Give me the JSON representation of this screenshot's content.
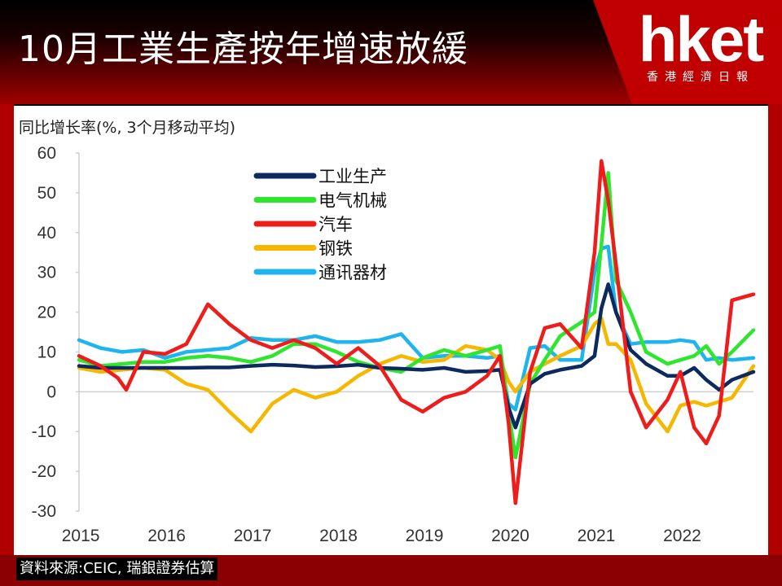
{
  "chart_data": {
    "type": "line",
    "title": "10月工業生產按年增速放緩",
    "xlabel": "",
    "ylabel": "同比增长率(%, 3个月移动平均)",
    "ylim": [
      -30,
      60
    ],
    "xlim": [
      2015.0,
      2022.85
    ],
    "yticks": [
      60,
      50,
      40,
      30,
      20,
      10,
      0,
      -10,
      -20,
      -30
    ],
    "xticks": [
      "2015",
      "2016",
      "2017",
      "2018",
      "2019",
      "2020",
      "2021",
      "2022"
    ],
    "grid": false,
    "legend_position": "top-left",
    "series": [
      {
        "name": "工业生产",
        "color": "#0d2a5e",
        "points": [
          [
            2015.0,
            6.5
          ],
          [
            2015.25,
            6.0
          ],
          [
            2015.5,
            6.0
          ],
          [
            2015.75,
            6.0
          ],
          [
            2016.0,
            6.0
          ],
          [
            2016.25,
            6.0
          ],
          [
            2016.5,
            6.1
          ],
          [
            2016.75,
            6.1
          ],
          [
            2017.0,
            6.5
          ],
          [
            2017.25,
            6.8
          ],
          [
            2017.5,
            6.6
          ],
          [
            2017.75,
            6.2
          ],
          [
            2018.0,
            6.4
          ],
          [
            2018.25,
            6.8
          ],
          [
            2018.5,
            6.0
          ],
          [
            2018.75,
            5.8
          ],
          [
            2019.0,
            5.5
          ],
          [
            2019.25,
            6.0
          ],
          [
            2019.5,
            5.0
          ],
          [
            2019.75,
            5.2
          ],
          [
            2019.9,
            5.5
          ],
          [
            2020.0,
            -4.0
          ],
          [
            2020.08,
            -9.0
          ],
          [
            2020.25,
            2.0
          ],
          [
            2020.42,
            4.5
          ],
          [
            2020.6,
            5.5
          ],
          [
            2020.85,
            6.5
          ],
          [
            2021.0,
            9.0
          ],
          [
            2021.08,
            21.0
          ],
          [
            2021.16,
            27.0
          ],
          [
            2021.25,
            20.0
          ],
          [
            2021.42,
            10.5
          ],
          [
            2021.6,
            7.0
          ],
          [
            2021.85,
            4.0
          ],
          [
            2022.0,
            4.0
          ],
          [
            2022.16,
            6.0
          ],
          [
            2022.3,
            3.0
          ],
          [
            2022.45,
            0.5
          ],
          [
            2022.6,
            3.0
          ],
          [
            2022.85,
            5.0
          ]
        ]
      },
      {
        "name": "电气机械",
        "color": "#2ee62e",
        "points": [
          [
            2015.0,
            8.0
          ],
          [
            2015.25,
            6.5
          ],
          [
            2015.5,
            7.0
          ],
          [
            2015.75,
            7.5
          ],
          [
            2016.0,
            7.5
          ],
          [
            2016.25,
            8.5
          ],
          [
            2016.5,
            9.0
          ],
          [
            2016.75,
            8.5
          ],
          [
            2017.0,
            7.5
          ],
          [
            2017.25,
            9.0
          ],
          [
            2017.5,
            12.0
          ],
          [
            2017.75,
            12.0
          ],
          [
            2018.0,
            10.0
          ],
          [
            2018.25,
            7.5
          ],
          [
            2018.5,
            6.0
          ],
          [
            2018.75,
            5.0
          ],
          [
            2019.0,
            8.5
          ],
          [
            2019.25,
            10.5
          ],
          [
            2019.5,
            9.0
          ],
          [
            2019.75,
            10.5
          ],
          [
            2019.9,
            11.5
          ],
          [
            2020.0,
            -5.0
          ],
          [
            2020.08,
            -16.5
          ],
          [
            2020.25,
            2.0
          ],
          [
            2020.42,
            8.0
          ],
          [
            2020.6,
            14.0
          ],
          [
            2020.85,
            17.5
          ],
          [
            2021.0,
            20.0
          ],
          [
            2021.08,
            37.0
          ],
          [
            2021.16,
            55.0
          ],
          [
            2021.25,
            28.0
          ],
          [
            2021.42,
            20.0
          ],
          [
            2021.6,
            10.0
          ],
          [
            2021.85,
            7.0
          ],
          [
            2022.0,
            8.0
          ],
          [
            2022.16,
            9.0
          ],
          [
            2022.3,
            11.5
          ],
          [
            2022.45,
            7.0
          ],
          [
            2022.6,
            10.0
          ],
          [
            2022.85,
            15.5
          ]
        ]
      },
      {
        "name": "汽车",
        "color": "#ef1c1c",
        "points": [
          [
            2015.0,
            9.0
          ],
          [
            2015.25,
            6.5
          ],
          [
            2015.45,
            3.5
          ],
          [
            2015.55,
            0.5
          ],
          [
            2015.75,
            10.0
          ],
          [
            2016.0,
            9.5
          ],
          [
            2016.25,
            12.0
          ],
          [
            2016.5,
            22.0
          ],
          [
            2016.75,
            17.0
          ],
          [
            2017.0,
            13.0
          ],
          [
            2017.25,
            11.0
          ],
          [
            2017.5,
            13.0
          ],
          [
            2017.75,
            11.0
          ],
          [
            2018.0,
            7.0
          ],
          [
            2018.25,
            11.0
          ],
          [
            2018.5,
            6.5
          ],
          [
            2018.75,
            -2.0
          ],
          [
            2019.0,
            -5.0
          ],
          [
            2019.25,
            -1.5
          ],
          [
            2019.5,
            0.0
          ],
          [
            2019.75,
            4.0
          ],
          [
            2019.9,
            9.0
          ],
          [
            2020.0,
            -8.0
          ],
          [
            2020.08,
            -28.0
          ],
          [
            2020.25,
            5.0
          ],
          [
            2020.42,
            16.0
          ],
          [
            2020.6,
            17.0
          ],
          [
            2020.85,
            11.0
          ],
          [
            2021.0,
            35.0
          ],
          [
            2021.08,
            58.0
          ],
          [
            2021.16,
            48.0
          ],
          [
            2021.25,
            32.0
          ],
          [
            2021.42,
            0.0
          ],
          [
            2021.6,
            -9.0
          ],
          [
            2021.85,
            -2.0
          ],
          [
            2022.0,
            5.0
          ],
          [
            2022.16,
            -9.0
          ],
          [
            2022.3,
            -13.0
          ],
          [
            2022.45,
            -6.0
          ],
          [
            2022.6,
            23.0
          ],
          [
            2022.85,
            24.5
          ]
        ]
      },
      {
        "name": "钢铁",
        "color": "#f6b700",
        "points": [
          [
            2015.0,
            6.0
          ],
          [
            2015.25,
            5.0
          ],
          [
            2015.5,
            5.5
          ],
          [
            2015.75,
            6.0
          ],
          [
            2016.0,
            5.5
          ],
          [
            2016.25,
            2.0
          ],
          [
            2016.5,
            0.5
          ],
          [
            2016.75,
            -5.0
          ],
          [
            2017.0,
            -10.0
          ],
          [
            2017.25,
            -3.0
          ],
          [
            2017.5,
            0.5
          ],
          [
            2017.75,
            -1.5
          ],
          [
            2018.0,
            0.0
          ],
          [
            2018.25,
            4.0
          ],
          [
            2018.5,
            7.0
          ],
          [
            2018.75,
            9.0
          ],
          [
            2019.0,
            7.5
          ],
          [
            2019.25,
            8.0
          ],
          [
            2019.5,
            11.5
          ],
          [
            2019.75,
            10.5
          ],
          [
            2019.9,
            8.0
          ],
          [
            2020.0,
            2.5
          ],
          [
            2020.08,
            0.0
          ],
          [
            2020.25,
            5.0
          ],
          [
            2020.42,
            7.0
          ],
          [
            2020.6,
            9.0
          ],
          [
            2020.85,
            11.5
          ],
          [
            2021.0,
            17.0
          ],
          [
            2021.08,
            18.5
          ],
          [
            2021.16,
            12.0
          ],
          [
            2021.25,
            12.0
          ],
          [
            2021.42,
            8.0
          ],
          [
            2021.6,
            -3.0
          ],
          [
            2021.85,
            -10.0
          ],
          [
            2022.0,
            -3.5
          ],
          [
            2022.16,
            -2.5
          ],
          [
            2022.3,
            -3.5
          ],
          [
            2022.45,
            -2.5
          ],
          [
            2022.6,
            -1.5
          ],
          [
            2022.85,
            6.5
          ]
        ]
      },
      {
        "name": "通讯器材",
        "color": "#1eb4ee",
        "points": [
          [
            2015.0,
            13.0
          ],
          [
            2015.25,
            11.0
          ],
          [
            2015.5,
            10.0
          ],
          [
            2015.75,
            10.5
          ],
          [
            2016.0,
            8.5
          ],
          [
            2016.25,
            10.0
          ],
          [
            2016.5,
            10.5
          ],
          [
            2016.75,
            11.0
          ],
          [
            2017.0,
            13.5
          ],
          [
            2017.25,
            13.0
          ],
          [
            2017.5,
            13.0
          ],
          [
            2017.75,
            14.0
          ],
          [
            2018.0,
            12.5
          ],
          [
            2018.25,
            12.5
          ],
          [
            2018.5,
            13.0
          ],
          [
            2018.75,
            14.5
          ],
          [
            2019.0,
            8.5
          ],
          [
            2019.25,
            9.0
          ],
          [
            2019.5,
            9.0
          ],
          [
            2019.75,
            8.5
          ],
          [
            2019.9,
            9.0
          ],
          [
            2020.0,
            -3.0
          ],
          [
            2020.08,
            -4.5
          ],
          [
            2020.25,
            11.0
          ],
          [
            2020.42,
            11.5
          ],
          [
            2020.6,
            8.0
          ],
          [
            2020.85,
            8.0
          ],
          [
            2021.0,
            30.0
          ],
          [
            2021.08,
            36.0
          ],
          [
            2021.16,
            36.5
          ],
          [
            2021.25,
            20.0
          ],
          [
            2021.42,
            12.0
          ],
          [
            2021.6,
            12.5
          ],
          [
            2021.85,
            12.5
          ],
          [
            2022.0,
            13.0
          ],
          [
            2022.16,
            12.5
          ],
          [
            2022.3,
            8.0
          ],
          [
            2022.45,
            8.5
          ],
          [
            2022.6,
            8.0
          ],
          [
            2022.85,
            8.5
          ]
        ]
      }
    ]
  },
  "brand": {
    "logo_text": "hket",
    "logo_subtitle": "香港經濟日報",
    "accent_color": "#c00000"
  },
  "footer": {
    "source": "資料來源:CEIC, 瑞銀證券估算"
  }
}
